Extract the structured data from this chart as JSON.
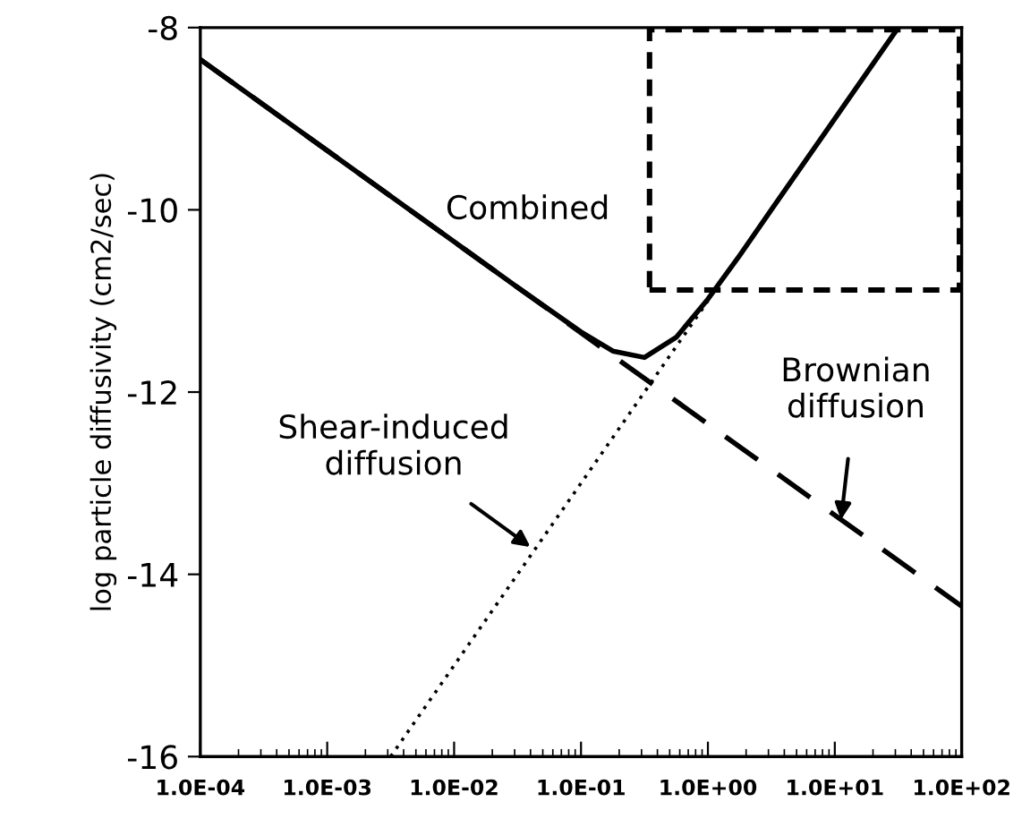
{
  "chart_data": {
    "type": "line",
    "ylabel": "log particle diffusivity (cm2/sec)",
    "log": "x",
    "xlim": [
      0.0001,
      100
    ],
    "ylim": [
      -16,
      -8
    ],
    "xticks": [
      {
        "value": 0.0001,
        "label": "1.0E-04"
      },
      {
        "value": 0.001,
        "label": "1.0E-03"
      },
      {
        "value": 0.01,
        "label": "1.0E-02"
      },
      {
        "value": 0.1,
        "label": "1.0E-01"
      },
      {
        "value": 1,
        "label": "1.0E+00"
      },
      {
        "value": 10,
        "label": "1.0E+01"
      },
      {
        "value": 100,
        "label": "1.0E+02"
      }
    ],
    "yticks": [
      -16,
      -14,
      -12,
      -10,
      -8
    ],
    "series": [
      {
        "color": "#000000",
        "line_style": "dashed",
        "x": [
          0.0001,
          100
        ],
        "values": [
          -8.35,
          -14.35
        ]
      },
      {
        "color": "#000000",
        "line_style": "dotted",
        "x": [
          0.00316,
          1
        ],
        "values": [
          -16,
          -11
        ]
      },
      {
        "color": "#000000",
        "line_style": "solid",
        "x": [
          0.0001,
          0.001,
          0.01,
          0.0316,
          0.1,
          0.178,
          0.316,
          0.562,
          1,
          1.78,
          3.16,
          10,
          31.6
        ],
        "values": [
          -8.35,
          -9.35,
          -10.35,
          -10.85,
          -11.34,
          -11.55,
          -11.62,
          -11.4,
          -10.98,
          -10.5,
          -10.0,
          -9.0,
          -8.0
        ]
      }
    ],
    "annotations": [
      {
        "text": "Combined",
        "x": 0.038,
        "y": -10.93
      },
      {
        "text": "Shear-induced\ndiffusion",
        "x": 0.04,
        "y": -13.7
      },
      {
        "text": "Brownian\ndiffusion",
        "x": 11.2,
        "y": -13.4
      }
    ]
  }
}
